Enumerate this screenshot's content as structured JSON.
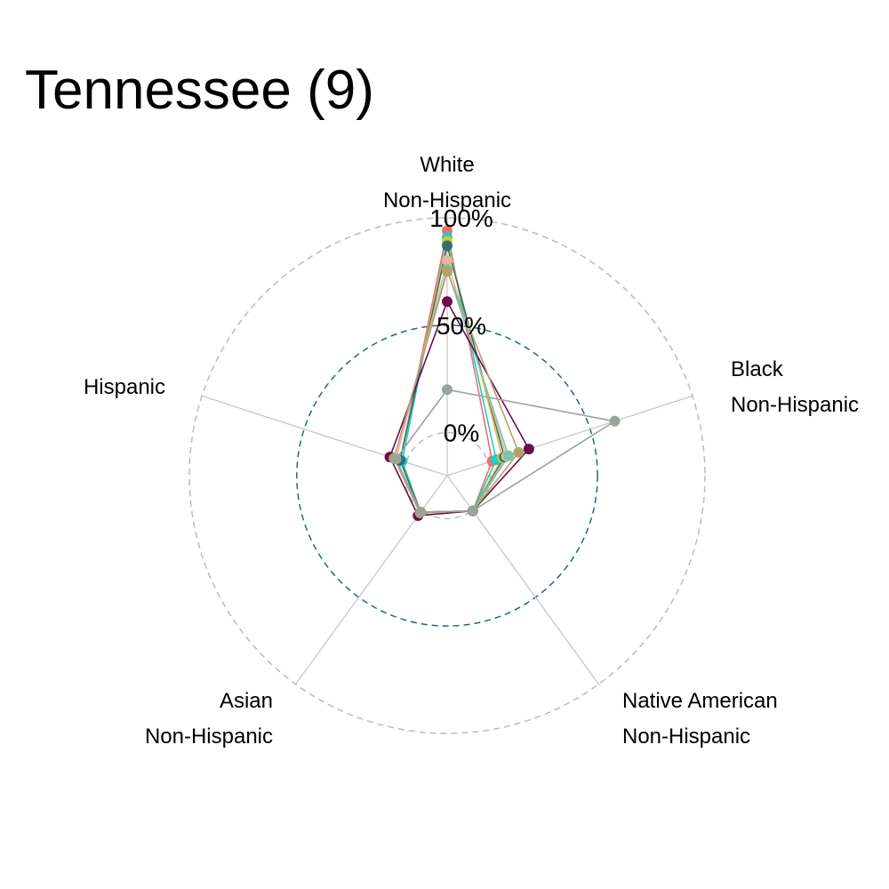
{
  "chart_data": {
    "type": "radar",
    "title": "Tennessee (9)",
    "axes": [
      {
        "lines": [
          "White",
          "Non-Hispanic"
        ]
      },
      {
        "lines": [
          "Black",
          "Non-Hispanic"
        ]
      },
      {
        "lines": [
          "Native American",
          "Non-Hispanic"
        ]
      },
      {
        "lines": [
          "Asian",
          "Non-Hispanic"
        ]
      },
      {
        "lines": [
          "Hispanic",
          ""
        ]
      }
    ],
    "radial_range": [
      -20,
      100
    ],
    "ticks": [
      {
        "value": 0,
        "label": "0%",
        "color": "#bbbbbb"
      },
      {
        "value": 50,
        "label": "50%",
        "color": "#1a6e7a"
      },
      {
        "value": 100,
        "label": "100%",
        "color": "#bbbbbb"
      }
    ],
    "series": [
      {
        "color": "#f26d6d",
        "values": [
          94,
          2,
          0.3,
          1,
          3
        ]
      },
      {
        "color": "#1ccfc7",
        "values": [
          91,
          4,
          0.3,
          1,
          2
        ]
      },
      {
        "color": "#e0c32a",
        "values": [
          89,
          7,
          0.3,
          1,
          3
        ]
      },
      {
        "color": "#2f6f7a",
        "values": [
          87,
          8,
          0.3,
          1,
          3
        ]
      },
      {
        "color": "#e8b4a0",
        "values": [
          80,
          9,
          0.3,
          1,
          5
        ]
      },
      {
        "color": "#7cc4a8",
        "values": [
          76,
          10,
          0.3,
          1,
          6
        ]
      },
      {
        "color": "#6b0e4f",
        "values": [
          61,
          20,
          0.3,
          3,
          8
        ]
      },
      {
        "color": "#b5a26a",
        "values": [
          75,
          15,
          0.3,
          1.5,
          6
        ]
      },
      {
        "color": "#9aa49a",
        "values": [
          20,
          62,
          0.3,
          1,
          5
        ]
      }
    ]
  }
}
